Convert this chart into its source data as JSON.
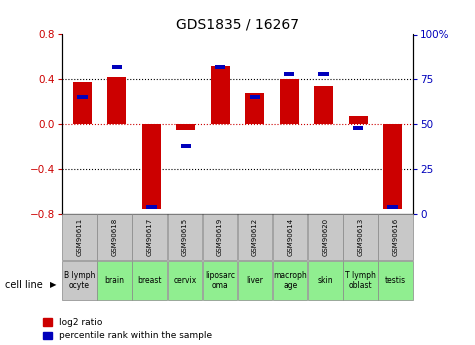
{
  "title": "GDS1835 / 16267",
  "gsm_labels": [
    "GSM90611",
    "GSM90618",
    "GSM90617",
    "GSM90615",
    "GSM90619",
    "GSM90612",
    "GSM90614",
    "GSM90620",
    "GSM90613",
    "GSM90616"
  ],
  "cell_labels": [
    "B lymph\nocyte",
    "brain",
    "breast",
    "cervix",
    "liposarc\noma",
    "liver",
    "macroph\nage",
    "skin",
    "T lymph\noblast",
    "testis"
  ],
  "cell_bg_colors": [
    "#c8c8c8",
    "#90ee90",
    "#90ee90",
    "#90ee90",
    "#90ee90",
    "#90ee90",
    "#90ee90",
    "#90ee90",
    "#90ee90",
    "#90ee90"
  ],
  "log2_ratio": [
    0.38,
    0.42,
    -0.76,
    -0.05,
    0.52,
    0.28,
    0.4,
    0.34,
    0.07,
    -0.76
  ],
  "percentile_rank": [
    65,
    82,
    4,
    38,
    82,
    65,
    78,
    78,
    48,
    4
  ],
  "ylim_left": [
    -0.8,
    0.8
  ],
  "ylim_right": [
    0,
    100
  ],
  "yticks_left": [
    -0.8,
    -0.4,
    0.0,
    0.4,
    0.8
  ],
  "yticks_right": [
    0,
    25,
    50,
    75,
    100
  ],
  "bar_color_red": "#cc0000",
  "bar_color_blue": "#0000bb",
  "gsm_bg_color": "#c8c8c8",
  "legend_red_label": "log2 ratio",
  "legend_blue_label": "percentile rank within the sample",
  "cell_line_label": "cell line"
}
